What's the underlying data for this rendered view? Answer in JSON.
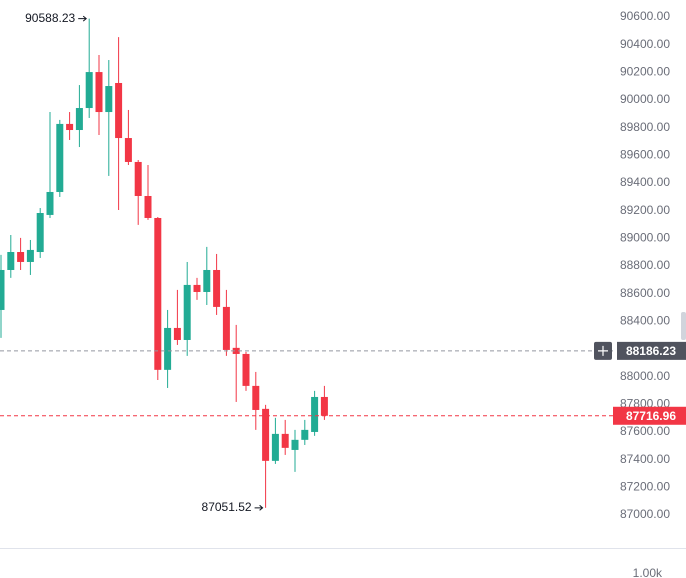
{
  "chart_data": {
    "type": "candlestick",
    "up_color": "#22ab94",
    "down_color": "#f23645",
    "open": [
      88482,
      88771,
      88901,
      88829,
      88901,
      89169,
      89335,
      89827,
      89783,
      89942,
      90202,
      89913,
      90123,
      89725,
      89552,
      89306,
      89147,
      88049,
      88352,
      88265,
      88663,
      88612,
      88771,
      88504,
      88208,
      88164,
      87933,
      87767,
      87391,
      87586,
      87470,
      87543,
      87600,
      87853
    ],
    "high": [
      88880,
      89024,
      89003,
      88988,
      89219,
      89913,
      89856,
      89913,
      90108,
      90588.23,
      90325,
      90289,
      90455,
      89928,
      89566,
      89530,
      89154,
      88482,
      88627,
      88829,
      88714,
      88938,
      88887,
      88627,
      88374,
      88179,
      88034,
      87796,
      87702,
      87687,
      87615,
      87687,
      87897,
      87933
    ],
    "low": [
      88280,
      88714,
      88771,
      88735,
      88858,
      89147,
      89299,
      89711,
      89660,
      89870,
      89747,
      89451,
      89205,
      89530,
      89097,
      89133,
      87976,
      87918,
      88229,
      88150,
      88555,
      88518,
      88446,
      88150,
      87817,
      87897,
      87615,
      87051.52,
      87369,
      87434,
      87311,
      87506,
      87572,
      87687
    ],
    "close": [
      88771,
      88901,
      88829,
      88916,
      89183,
      89335,
      89827,
      89783,
      89942,
      90202,
      89913,
      90101,
      89725,
      89552,
      89306,
      89147,
      88049,
      88352,
      88265,
      88663,
      88612,
      88771,
      88504,
      88193,
      88164,
      87933,
      87759,
      87391,
      87586,
      87485,
      87543,
      87615,
      87853,
      87716.96
    ],
    "ylim": [
      86761,
      90723
    ],
    "yticks": [
      {
        "value": 90600,
        "label": "90600.00"
      },
      {
        "value": 90400,
        "label": "90400.00"
      },
      {
        "value": 90200,
        "label": "90200.00"
      },
      {
        "value": 90000,
        "label": "90000.00"
      },
      {
        "value": 89800,
        "label": "89800.00"
      },
      {
        "value": 89600,
        "label": "89600.00"
      },
      {
        "value": 89400,
        "label": "89400.00"
      },
      {
        "value": 89200,
        "label": "89200.00"
      },
      {
        "value": 89000,
        "label": "89000.00"
      },
      {
        "value": 88800,
        "label": "88800.00"
      },
      {
        "value": 88600,
        "label": "88600.00"
      },
      {
        "value": 88400,
        "label": "88400.00"
      },
      {
        "value": 88200,
        "label": "88200.00"
      },
      {
        "value": 88000,
        "label": "88000.00"
      },
      {
        "value": 87800,
        "label": "87800.00"
      },
      {
        "value": 87600,
        "label": "87600.00"
      },
      {
        "value": 87400,
        "label": "87400.00"
      },
      {
        "value": 87200,
        "label": "87200.00"
      },
      {
        "value": 87000,
        "label": "87000.00"
      }
    ],
    "max_high": 90588.23,
    "min_low": 87051.52,
    "crosshair_price": 88186.23,
    "last_price": 87716.96,
    "volume_label": "1.00k"
  }
}
